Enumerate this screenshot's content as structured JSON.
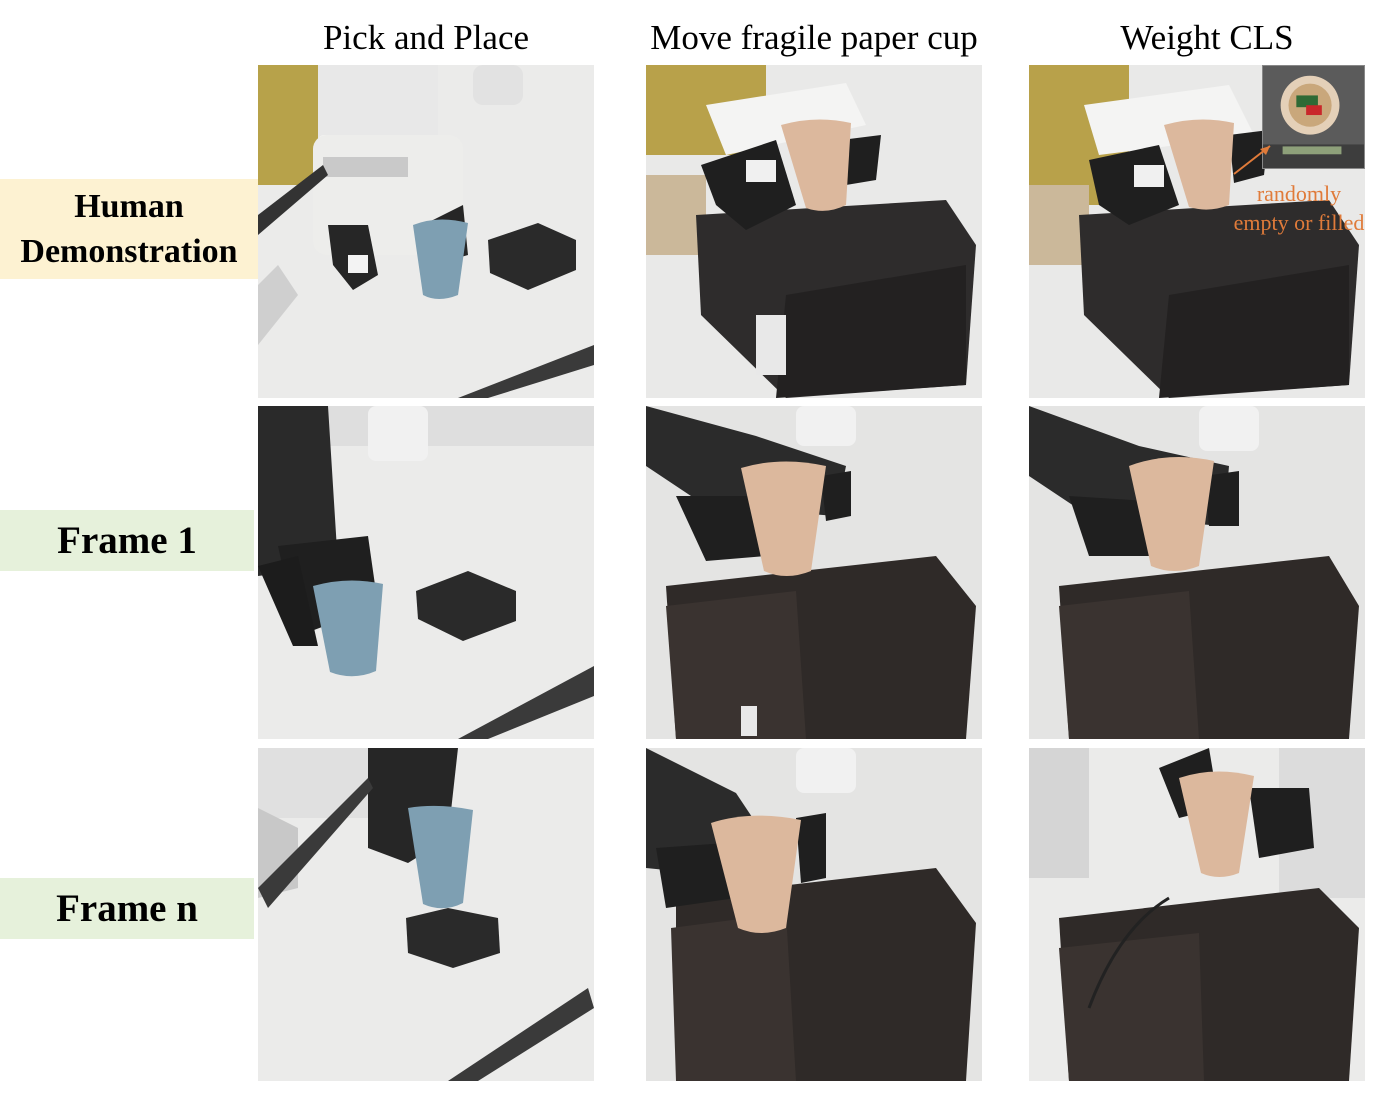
{
  "columns": [
    {
      "title": "Pick and Place"
    },
    {
      "title": "Move fragile paper cup"
    },
    {
      "title": "Weight CLS"
    }
  ],
  "rows": {
    "human": {
      "line1": "Human",
      "line2": "Demonstration"
    },
    "frame1": {
      "label": "Frame 1"
    },
    "framen": {
      "label": "Frame n"
    }
  },
  "annotation": {
    "line1": "randomly",
    "line2": "empty or filled"
  },
  "colors": {
    "human_label_bg": "#fdf2d2",
    "frame_label_bg": "#e6f1db",
    "annotation": "#e07b3a",
    "blue_cup": "#7e9fb2",
    "paper_cup": "#dcb89d",
    "box": "#2b2929"
  }
}
